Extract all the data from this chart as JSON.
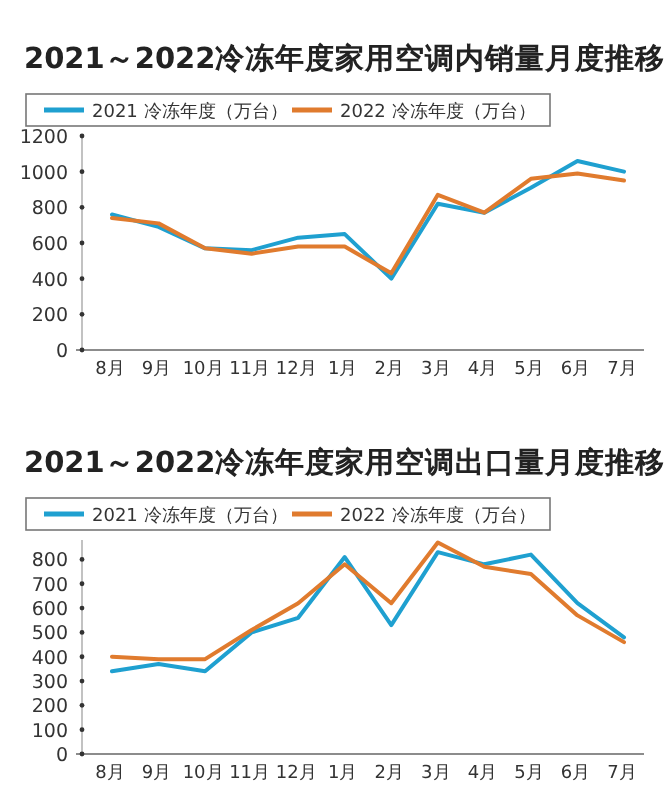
{
  "chart_data": [
    {
      "type": "line",
      "title": "2021～2022冷冻年度家用空调内销量月度推移",
      "categories": [
        "8月",
        "9月",
        "10月",
        "11月",
        "12月",
        "1月",
        "2月",
        "3月",
        "4月",
        "5月",
        "6月",
        "7月"
      ],
      "ylim": [
        0,
        1200
      ],
      "yticks": [
        0,
        200,
        400,
        600,
        800,
        1000,
        1200
      ],
      "legend": "top",
      "grid": false,
      "series": [
        {
          "name": "2021 冷冻年度（万台）",
          "color": "#1fa0d0",
          "values": [
            760,
            690,
            570,
            560,
            630,
            650,
            400,
            820,
            770,
            910,
            1060,
            1000
          ]
        },
        {
          "name": "2022 冷冻年度（万台）",
          "color": "#e07b2e",
          "values": [
            740,
            710,
            570,
            540,
            580,
            580,
            430,
            870,
            770,
            960,
            990,
            950
          ]
        }
      ]
    },
    {
      "type": "line",
      "title": "2021～2022冷冻年度家用空调出口量月度推移",
      "categories": [
        "8月",
        "9月",
        "10月",
        "11月",
        "12月",
        "1月",
        "2月",
        "3月",
        "4月",
        "5月",
        "6月",
        "7月"
      ],
      "ylim": [
        0,
        880
      ],
      "yticks": [
        0,
        100,
        200,
        300,
        400,
        500,
        600,
        700,
        800
      ],
      "legend": "top",
      "grid": false,
      "series": [
        {
          "name": "2021 冷冻年度（万台）",
          "color": "#1fa0d0",
          "values": [
            340,
            370,
            340,
            500,
            560,
            810,
            530,
            830,
            780,
            820,
            620,
            480
          ]
        },
        {
          "name": "2022 冷冻年度（万台）",
          "color": "#e07b2e",
          "values": [
            400,
            390,
            390,
            510,
            620,
            780,
            620,
            870,
            770,
            740,
            570,
            460
          ]
        }
      ]
    }
  ]
}
